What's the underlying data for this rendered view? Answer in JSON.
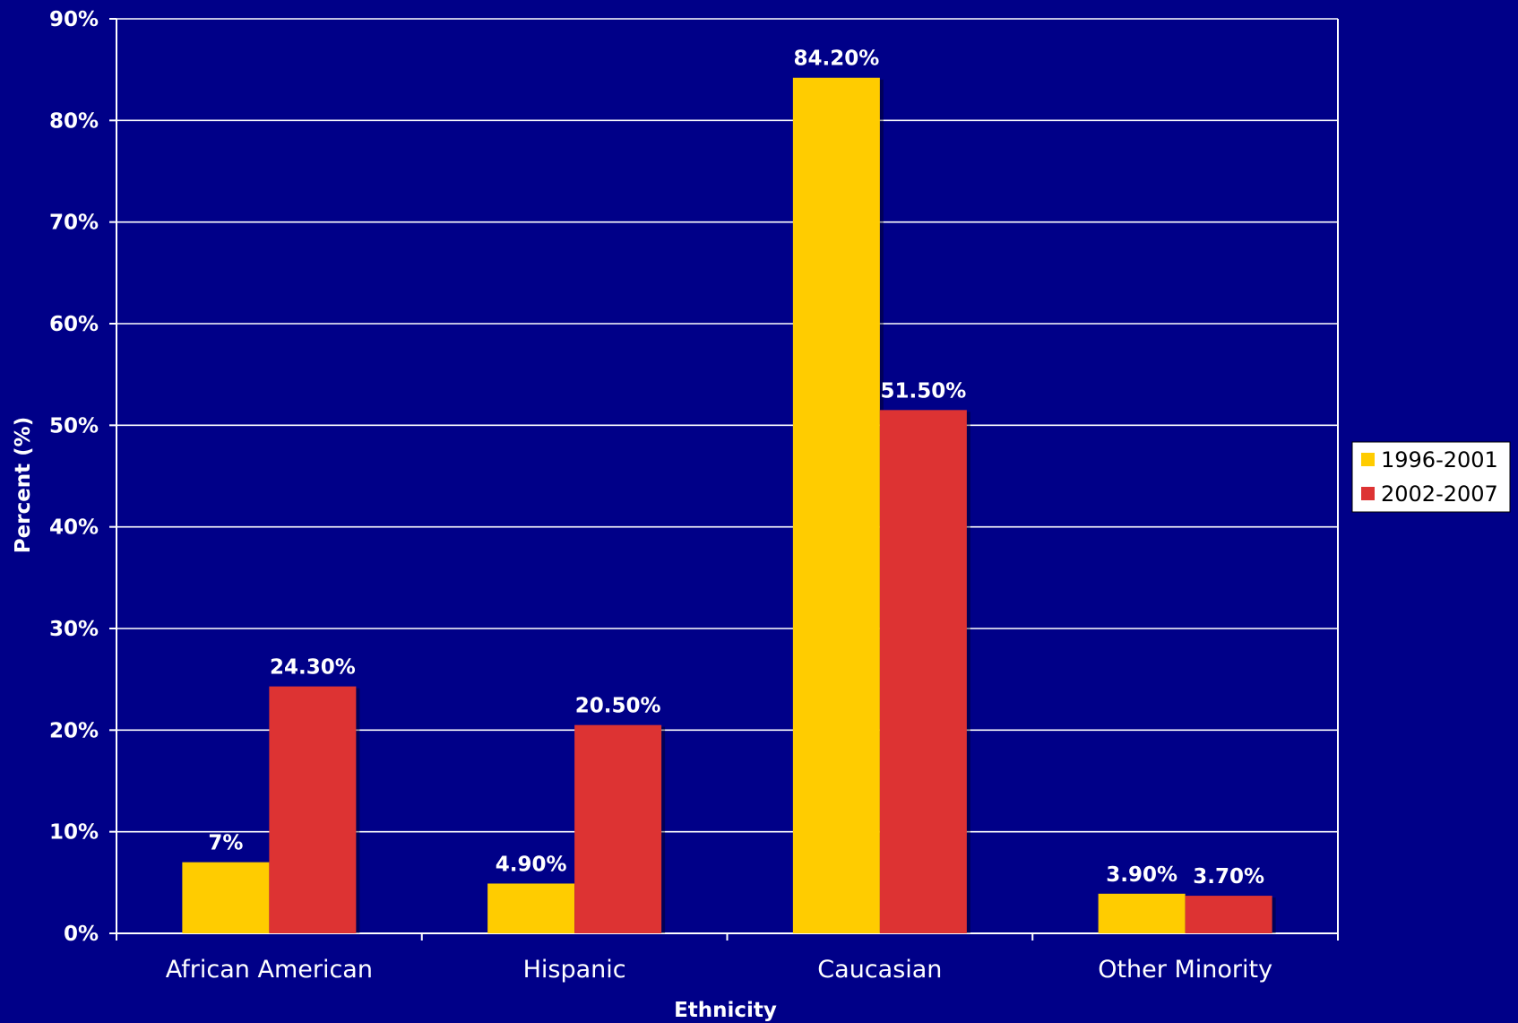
{
  "chart_data": {
    "type": "bar",
    "title": "",
    "xlabel": "Ethnicity",
    "ylabel": "Percent (%)",
    "ylim": [
      0,
      90
    ],
    "yticks": [
      0,
      10,
      20,
      30,
      40,
      50,
      60,
      70,
      80,
      90
    ],
    "ytick_labels": [
      "0%",
      "10%",
      "20%",
      "30%",
      "40%",
      "50%",
      "60%",
      "70%",
      "80%",
      "90%"
    ],
    "categories": [
      "African American",
      "Hispanic",
      "Caucasian",
      "Other Minority"
    ],
    "series": [
      {
        "name": "1996-2001",
        "color": "#ffcc00",
        "values": [
          7,
          4.9,
          84.2,
          3.9
        ],
        "labels": [
          "7%",
          "4.90%",
          "84.20%",
          "3.90%"
        ]
      },
      {
        "name": "2002-2007",
        "color": "#dd3333",
        "values": [
          24.3,
          20.5,
          51.5,
          3.7
        ],
        "labels": [
          "24.30%",
          "20.50%",
          "51.50%",
          "3.70%"
        ]
      }
    ],
    "grid": true,
    "gridline_color": "#ffffff",
    "background_color": "#000088",
    "legend_placement": "right"
  }
}
